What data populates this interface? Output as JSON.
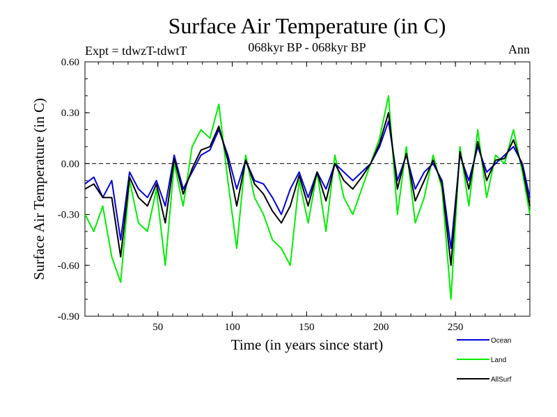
{
  "chart_data": {
    "type": "line",
    "title": "Surface Air Temperature (in C)",
    "subtitle_left": "Expt = tdwzT-tdwtT",
    "subtitle_center": "068kyr BP - 068kyr BP",
    "subtitle_right": "Ann",
    "xlabel": "Time (in years since start)",
    "ylabel": "Surface Air Temperature (in C)",
    "xlim": [
      1,
      300
    ],
    "ylim": [
      -0.9,
      0.6
    ],
    "x_ticks": [
      50,
      100,
      150,
      200,
      250
    ],
    "x_tick_labels": [
      "50",
      "100",
      "150",
      "200",
      "250"
    ],
    "y_ticks": [
      -0.9,
      -0.6,
      -0.3,
      0.0,
      0.3,
      0.6
    ],
    "y_tick_labels": [
      "-0.90",
      "-0.60",
      "-0.30",
      "0.00",
      "0.30",
      "0.60"
    ],
    "reference_line": 0.0,
    "legend_position": "bottom-right",
    "x": [
      1,
      7,
      13,
      19,
      25,
      31,
      37,
      43,
      49,
      55,
      61,
      67,
      73,
      79,
      85,
      91,
      97,
      103,
      109,
      115,
      121,
      127,
      133,
      139,
      145,
      151,
      157,
      163,
      169,
      175,
      181,
      187,
      193,
      199,
      205,
      211,
      217,
      223,
      229,
      235,
      241,
      247,
      253,
      259,
      265,
      271,
      277,
      283,
      289,
      295,
      300
    ],
    "series": [
      {
        "name": "Ocean",
        "color": "#0000dd",
        "values": [
          -0.12,
          -0.08,
          -0.2,
          -0.1,
          -0.45,
          -0.05,
          -0.15,
          -0.2,
          -0.1,
          -0.25,
          0.05,
          -0.15,
          -0.05,
          0.05,
          0.08,
          0.2,
          0.05,
          -0.15,
          0.02,
          -0.1,
          -0.12,
          -0.2,
          -0.3,
          -0.15,
          -0.05,
          -0.2,
          -0.05,
          -0.15,
          0.0,
          -0.05,
          -0.1,
          -0.05,
          0.0,
          0.1,
          0.25,
          -0.1,
          0.05,
          -0.15,
          -0.05,
          0.0,
          -0.1,
          -0.5,
          0.05,
          -0.1,
          0.1,
          -0.05,
          0.0,
          0.05,
          0.1,
          0.0,
          -0.2
        ]
      },
      {
        "name": "Land",
        "color": "#00ee00",
        "values": [
          -0.3,
          -0.4,
          -0.25,
          -0.55,
          -0.7,
          -0.1,
          -0.35,
          -0.4,
          -0.15,
          -0.6,
          0.0,
          -0.25,
          0.1,
          0.2,
          0.15,
          0.35,
          -0.1,
          -0.5,
          0.05,
          -0.2,
          -0.3,
          -0.45,
          -0.5,
          -0.6,
          -0.1,
          -0.35,
          -0.05,
          -0.4,
          0.05,
          -0.2,
          -0.3,
          -0.15,
          0.0,
          0.15,
          0.4,
          -0.3,
          0.1,
          -0.35,
          -0.2,
          0.05,
          -0.15,
          -0.8,
          0.1,
          -0.25,
          0.2,
          -0.2,
          0.05,
          0.0,
          0.2,
          -0.05,
          -0.3
        ]
      },
      {
        "name": "AllSurf",
        "color": "#000000",
        "values": [
          -0.15,
          -0.12,
          -0.2,
          -0.2,
          -0.55,
          -0.08,
          -0.2,
          -0.25,
          -0.12,
          -0.35,
          0.03,
          -0.18,
          -0.03,
          0.08,
          0.1,
          0.22,
          0.02,
          -0.25,
          0.02,
          -0.12,
          -0.18,
          -0.28,
          -0.35,
          -0.25,
          -0.07,
          -0.25,
          -0.05,
          -0.22,
          0.0,
          -0.1,
          -0.15,
          -0.08,
          0.0,
          0.12,
          0.3,
          -0.15,
          0.06,
          -0.22,
          -0.1,
          0.02,
          -0.12,
          -0.6,
          0.07,
          -0.15,
          0.13,
          -0.1,
          0.02,
          0.03,
          0.14,
          -0.02,
          -0.25
        ]
      }
    ]
  }
}
